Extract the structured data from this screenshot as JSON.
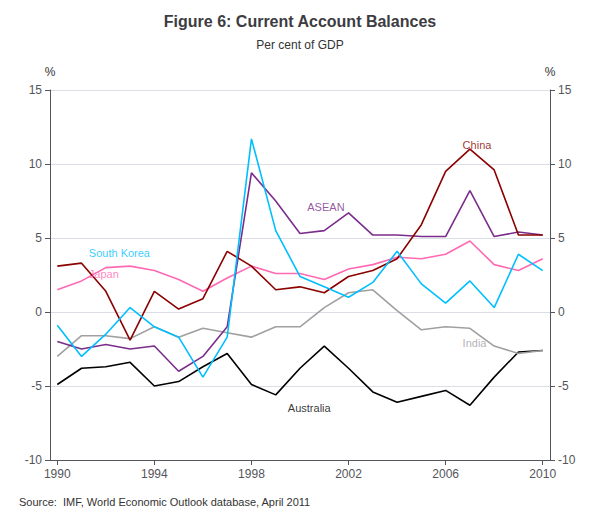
{
  "chart_data": {
    "type": "line",
    "title": "Figure 6: Current Account Balances",
    "subtitle": "Per cent of GDP",
    "source": "Source:  IMF, World Economic Outlook database, April 2011",
    "ylabel": "%",
    "y2label": "%",
    "x": [
      1990,
      1991,
      1992,
      1993,
      1994,
      1995,
      1996,
      1997,
      1998,
      1999,
      2000,
      2001,
      2002,
      2003,
      2004,
      2005,
      2006,
      2007,
      2008,
      2009,
      2010
    ],
    "series": [
      {
        "name": "Australia",
        "color": "#000000",
        "values": [
          -4.9,
          -3.8,
          -3.7,
          -3.4,
          -5.0,
          -4.7,
          -3.7,
          -2.8,
          -4.9,
          -5.6,
          -3.8,
          -2.3,
          -3.8,
          -5.4,
          -6.1,
          -5.7,
          -5.3,
          -6.3,
          -4.4,
          -2.7,
          -2.6
        ]
      },
      {
        "name": "India",
        "color": "#a0a0a0",
        "values": [
          -3.0,
          -1.6,
          -1.6,
          -1.8,
          -1.0,
          -1.7,
          -1.1,
          -1.4,
          -1.7,
          -1.0,
          -1.0,
          0.3,
          1.3,
          1.5,
          0.1,
          -1.2,
          -1.0,
          -1.1,
          -2.3,
          -2.8,
          -2.6
        ]
      },
      {
        "name": "Japan",
        "color": "#ff69b4",
        "values": [
          1.5,
          2.1,
          3.0,
          3.1,
          2.8,
          2.2,
          1.4,
          2.3,
          3.1,
          2.6,
          2.6,
          2.2,
          2.9,
          3.2,
          3.7,
          3.6,
          3.9,
          4.8,
          3.2,
          2.8,
          3.6
        ]
      },
      {
        "name": "ASEAN",
        "color": "#7b2d8b",
        "values": [
          -2.0,
          -2.5,
          -2.2,
          -2.5,
          -2.3,
          -4.0,
          -3.0,
          -1.0,
          9.4,
          7.5,
          5.3,
          5.5,
          6.7,
          5.2,
          5.2,
          5.1,
          5.1,
          8.2,
          5.1,
          5.4,
          5.2
        ]
      },
      {
        "name": "China",
        "color": "#8b0000",
        "values": [
          3.1,
          3.3,
          1.4,
          -1.9,
          1.4,
          0.2,
          0.9,
          4.1,
          3.1,
          1.5,
          1.7,
          1.3,
          2.4,
          2.8,
          3.6,
          5.9,
          9.5,
          11.0,
          9.6,
          5.2,
          5.2
        ]
      },
      {
        "name": "South Korea",
        "color": "#00bfff",
        "values": [
          -0.9,
          -3.0,
          -1.5,
          0.3,
          -1.0,
          -1.7,
          -4.4,
          -1.7,
          11.7,
          5.5,
          2.4,
          1.7,
          1.0,
          2.0,
          4.1,
          1.9,
          0.6,
          2.1,
          0.3,
          3.9,
          2.8
        ]
      }
    ],
    "xlim": [
      1989.7,
      2010.3
    ],
    "xticks": [
      1990,
      1994,
      1998,
      2002,
      2006,
      2010
    ],
    "ylim": [
      -10,
      15
    ],
    "yticks": [
      -10,
      -5,
      0,
      5,
      10,
      15
    ],
    "y2lim": [
      -10,
      15
    ],
    "y2ticks": [
      -10,
      -5,
      0,
      5,
      10,
      15
    ],
    "grid": true,
    "annotations": [
      {
        "text": "South Korea",
        "x": 1991.3,
        "y": 4.0,
        "color": "#00bfff"
      },
      {
        "text": "Japan",
        "x": 1991.3,
        "y": 2.6,
        "color": "#ff69b4"
      },
      {
        "text": "China",
        "x": 2006.7,
        "y": 11.3,
        "color": "#8b0000"
      },
      {
        "text": "ASEAN",
        "x": 2000.3,
        "y": 7.1,
        "color": "#7b2d8b"
      },
      {
        "text": "India",
        "x": 2006.7,
        "y": -2.1,
        "color": "#a0a0a0"
      },
      {
        "text": "Australia",
        "x": 1999.5,
        "y": -6.5,
        "color": "#000000"
      }
    ]
  }
}
